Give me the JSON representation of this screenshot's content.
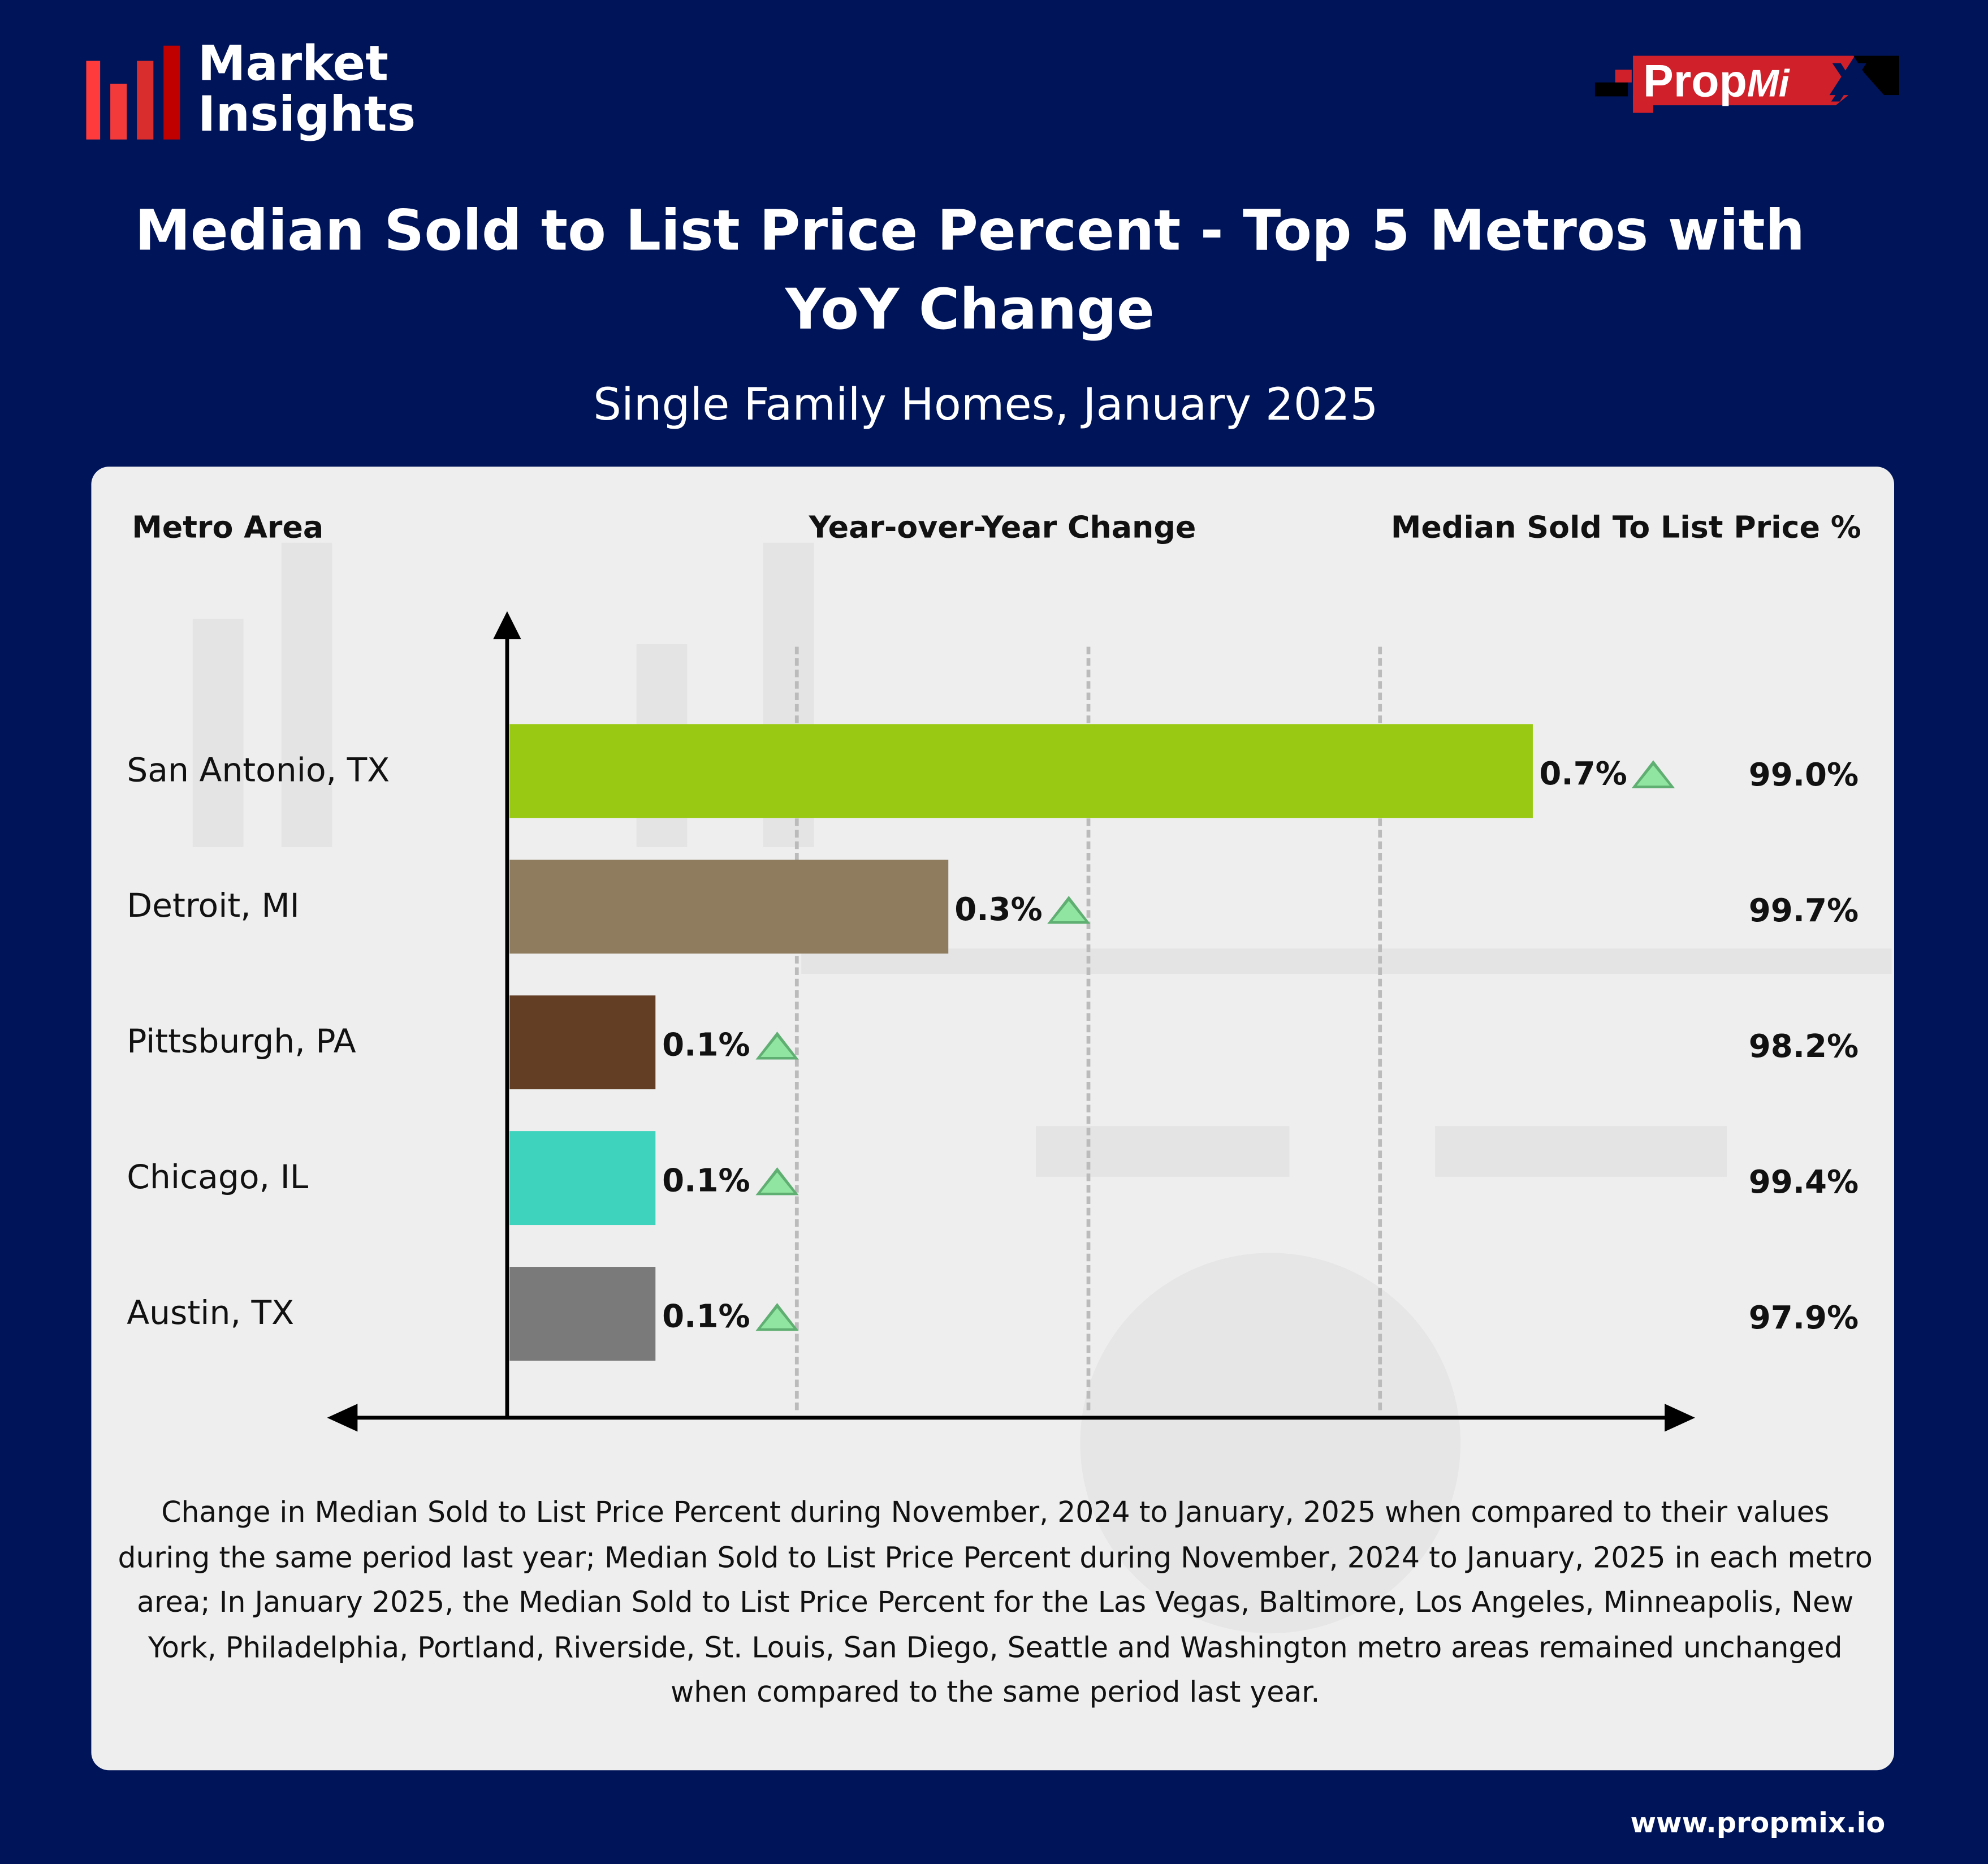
{
  "brand": {
    "logo_text_line1": "Market",
    "logo_text_line2": "Insights",
    "partner_logo": "PropMiX",
    "website": "www.propmix.io"
  },
  "header": {
    "title_line1": "Median Sold to List Price Percent - Top 5 Metros with",
    "title_line2": "YoY Change",
    "subtitle": "Single Family Homes, January 2025"
  },
  "columns": {
    "metro": "Metro Area",
    "yoy": "Year-over-Year Change",
    "median": "Median Sold To List Price %"
  },
  "chart_data": {
    "type": "bar",
    "orientation": "horizontal",
    "categories": [
      "San Antonio, TX",
      "Detroit, MI",
      "Pittsburgh, PA",
      "Chicago, IL",
      "Austin, TX"
    ],
    "values": [
      0.7,
      0.3,
      0.1,
      0.1,
      0.1
    ],
    "value_labels": [
      "0.7%",
      "0.3%",
      "0.1%",
      "0.1%",
      "0.1%"
    ],
    "trend": [
      "up",
      "up",
      "up",
      "up",
      "up"
    ],
    "median_sold_to_list": [
      "99.0%",
      "99.7%",
      "98.2%",
      "99.4%",
      "97.9%"
    ],
    "colors": [
      "#99c913",
      "#8f7c5e",
      "#633e25",
      "#3dd3bd",
      "#7a7a7a"
    ],
    "trend_color": "#90e6a0",
    "xlabel": "",
    "ylabel": ""
  },
  "footnote": "Change in Median Sold to List Price Percent during November, 2024 to January, 2025 when compared to their values during the same period last year; Median Sold to List Price Percent during November, 2024 to January, 2025 in each metro area;  In January 2025, the Median Sold to List Price Percent for the Las Vegas, Baltimore, Los Angeles, Minneapolis, New York, Philadelphia, Portland, Riverside, St. Louis, San Diego, Seattle and Washington metro areas remained unchanged when compared to the same period last year."
}
